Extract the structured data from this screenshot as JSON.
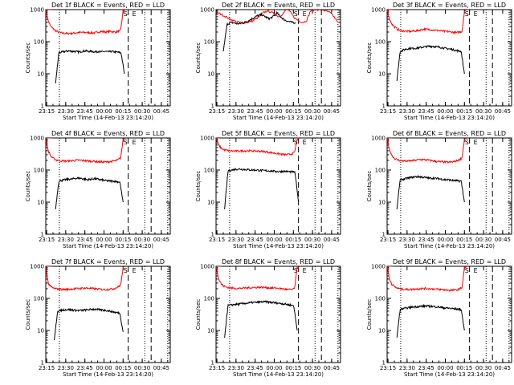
{
  "chart_data": [
    {
      "type": "line",
      "title": "Det 1f BLACK = Events, RED = LLD",
      "xlabel": "Start Time (14-Feb-13 23:14:20)",
      "ylabel": "Counts/sec",
      "y_scale": "log",
      "ylim": [
        1,
        1000
      ],
      "y_ticks": [
        "1",
        "10",
        "100",
        "1000"
      ],
      "x_ticks": [
        "23:15",
        "23:30",
        "23:45",
        "00:00",
        "00:15",
        "00:30",
        "00:45"
      ],
      "markers": [
        "S",
        "E"
      ],
      "series": [
        {
          "name": "RED = LLD",
          "color": "#ff0000",
          "start": "23:14:20",
          "end": "00:17",
          "flat_start": "23:19",
          "values": [
            1000,
            450,
            300,
            250,
            220,
            200,
            190,
            185,
            180,
            180,
            182,
            185,
            190,
            192,
            195,
            195,
            193,
            192,
            190,
            188,
            190,
            200,
            210,
            205,
            200,
            205,
            210,
            205,
            200,
            210,
            230,
            900,
            1000
          ]
        },
        {
          "name": "BLACK = Events",
          "color": "#000000",
          "start": "23:22",
          "end": "00:16",
          "values": [
            5,
            45,
            48,
            50,
            52,
            50,
            50,
            48,
            50,
            52,
            50,
            50,
            48,
            50,
            48,
            50,
            48,
            50,
            48,
            47,
            45,
            10
          ]
        }
      ]
    },
    {
      "type": "line",
      "title": "Det 2f BLACK = Events, RED = LLD",
      "xlabel": "Start Time (14-Feb-13 23:14:20)",
      "ylabel": "Counts/sec",
      "y_scale": "log",
      "ylim": [
        1,
        1000
      ],
      "y_ticks": [
        "1",
        "10",
        "100",
        "1000"
      ],
      "x_ticks": [
        "23:15",
        "23:30",
        "23:45",
        "00:00",
        "00:15",
        "00:30",
        "00:45"
      ],
      "markers": [
        "S",
        "E"
      ],
      "series": [
        {
          "name": "RED = LLD",
          "color": "#ff0000",
          "start": "23:14:20",
          "end": "00:50",
          "values": [
            850,
            750,
            650,
            550,
            480,
            430,
            400,
            390,
            400,
            430,
            500,
            600,
            800,
            900,
            850,
            700,
            600,
            750,
            1050,
            800,
            550,
            450,
            400,
            450,
            900,
            1000,
            1000,
            1000,
            900,
            800,
            600,
            400
          ]
        },
        {
          "name": "BLACK = Events",
          "color": "#000000",
          "start": "23:20",
          "end": "00:17",
          "values": [
            50,
            350,
            400,
            380,
            360,
            380,
            420,
            480,
            560,
            650,
            700,
            600,
            520,
            600,
            800,
            600,
            480,
            430,
            400,
            380
          ]
        }
      ]
    },
    {
      "type": "line",
      "title": "Det 3f BLACK = Events, RED = LLD",
      "xlabel": "Start Time (14-Feb-13 23:14:20)",
      "ylabel": "Counts/sec",
      "y_scale": "log",
      "ylim": [
        1,
        1000
      ],
      "y_ticks": [
        "1",
        "10",
        "100",
        "1000"
      ],
      "x_ticks": [
        "23:15",
        "23:30",
        "23:45",
        "00:00",
        "00:15",
        "00:30",
        "00:45"
      ],
      "markers": [
        "S",
        "E"
      ],
      "series": [
        {
          "name": "RED = LLD",
          "color": "#ff0000",
          "start": "23:14:20",
          "end": "00:17",
          "flat_start": "23:19",
          "values": [
            1000,
            500,
            350,
            290,
            250,
            230,
            220,
            215,
            210,
            210,
            212,
            215,
            220,
            230,
            240,
            245,
            242,
            240,
            235,
            230,
            225,
            220,
            215,
            210,
            208,
            205,
            200,
            195,
            190,
            200,
            210,
            900,
            1000
          ]
        },
        {
          "name": "BLACK = Events",
          "color": "#000000",
          "start": "23:22",
          "end": "00:15",
          "values": [
            6,
            50,
            55,
            60,
            62,
            62,
            63,
            65,
            68,
            70,
            72,
            72,
            70,
            68,
            66,
            62,
            60,
            58,
            55,
            52,
            50,
            10
          ]
        }
      ]
    },
    {
      "type": "line",
      "title": "Det 4f BLACK = Events, RED = LLD",
      "xlabel": "Start Time (14-Feb-13 23:14:20)",
      "ylabel": "Counts/sec",
      "y_scale": "log",
      "ylim": [
        1,
        1000
      ],
      "y_ticks": [
        "1",
        "10",
        "100",
        "1000"
      ],
      "x_ticks": [
        "23:15",
        "23:30",
        "23:45",
        "00:00",
        "00:15",
        "00:30",
        "00:45"
      ],
      "markers": [
        "S",
        "E"
      ],
      "series": [
        {
          "name": "RED = LLD",
          "color": "#ff0000",
          "start": "23:14:20",
          "end": "00:17",
          "flat_start": "23:19",
          "values": [
            1000,
            400,
            270,
            230,
            210,
            200,
            195,
            192,
            190,
            192,
            195,
            198,
            200,
            202,
            200,
            198,
            195,
            192,
            190,
            188,
            185,
            182,
            180,
            178,
            178,
            180,
            185,
            190,
            195,
            210,
            240,
            900,
            1000
          ]
        },
        {
          "name": "BLACK = Events",
          "color": "#000000",
          "start": "23:22",
          "end": "00:15",
          "values": [
            6,
            45,
            48,
            50,
            52,
            52,
            55,
            56,
            55,
            52,
            50,
            52,
            54,
            52,
            50,
            48,
            46,
            46,
            45,
            44,
            42,
            10
          ]
        }
      ]
    },
    {
      "type": "line",
      "title": "Det 5f BLACK = Events, RED = LLD",
      "xlabel": "Start Time (14-Feb-13 23:14:20)",
      "ylabel": "Counts/sec",
      "y_scale": "log",
      "ylim": [
        1,
        1000
      ],
      "y_ticks": [
        "1",
        "10",
        "100",
        "1000"
      ],
      "x_ticks": [
        "23:15",
        "23:30",
        "23:45",
        "00:00",
        "00:15",
        "00:30",
        "00:45"
      ],
      "markers": [
        "S",
        "E"
      ],
      "series": [
        {
          "name": "RED = LLD",
          "color": "#ff0000",
          "start": "23:14:20",
          "end": "00:20",
          "flat_start": "23:17",
          "values": [
            1000,
            600,
            480,
            430,
            410,
            400,
            395,
            390,
            390,
            392,
            395,
            398,
            400,
            398,
            395,
            392,
            390,
            385,
            380,
            370,
            360,
            350,
            340,
            330,
            320,
            310,
            305,
            300,
            305,
            320,
            350,
            900,
            1000
          ]
        },
        {
          "name": "BLACK = Events",
          "color": "#000000",
          "start": "23:21",
          "end": "00:19",
          "values": [
            6,
            95,
            100,
            105,
            108,
            106,
            104,
            102,
            100,
            100,
            98,
            96,
            95,
            94,
            92,
            90,
            90,
            92,
            90,
            88,
            86,
            10
          ]
        }
      ]
    },
    {
      "type": "line",
      "title": "Det 6f BLACK = Events, RED = LLD",
      "xlabel": "Start Time (14-Feb-13 23:14:20)",
      "ylabel": "Counts/sec",
      "y_scale": "log",
      "ylim": [
        1,
        1000
      ],
      "y_ticks": [
        "1",
        "10",
        "100",
        "1000"
      ],
      "x_ticks": [
        "23:15",
        "23:30",
        "23:45",
        "00:00",
        "00:15",
        "00:30",
        "00:45"
      ],
      "markers": [
        "S",
        "E"
      ],
      "series": [
        {
          "name": "RED = LLD",
          "color": "#ff0000",
          "start": "23:14:20",
          "end": "00:17",
          "flat_start": "23:19",
          "values": [
            1000,
            420,
            280,
            230,
            210,
            200,
            195,
            190,
            190,
            192,
            195,
            200,
            205,
            210,
            212,
            210,
            205,
            200,
            195,
            190,
            185,
            182,
            180,
            178,
            175,
            175,
            178,
            185,
            195,
            210,
            240,
            900,
            1000
          ]
        },
        {
          "name": "BLACK = Events",
          "color": "#000000",
          "start": "23:22",
          "end": "00:15",
          "values": [
            6,
            50,
            52,
            55,
            58,
            60,
            62,
            62,
            60,
            58,
            56,
            56,
            55,
            54,
            52,
            50,
            50,
            48,
            47,
            46,
            45,
            10
          ]
        }
      ]
    },
    {
      "type": "line",
      "title": "Det 7f BLACK = Events, RED = LLD",
      "xlabel": "Start Time (14-Feb-13 23:14:20)",
      "ylabel": "Counts/sec",
      "y_scale": "log",
      "ylim": [
        1,
        1000
      ],
      "y_ticks": [
        "1",
        "10",
        "100",
        "1000"
      ],
      "x_ticks": [
        "23:15",
        "23:30",
        "23:45",
        "00:00",
        "00:15",
        "00:30",
        "00:45"
      ],
      "markers": [
        "S",
        "E"
      ],
      "series": [
        {
          "name": "RED = LLD",
          "color": "#ff0000",
          "start": "23:14:20",
          "end": "00:17",
          "flat_start": "23:19",
          "values": [
            1000,
            300,
            230,
            210,
            200,
            195,
            192,
            190,
            190,
            192,
            195,
            198,
            200,
            202,
            205,
            208,
            210,
            208,
            205,
            200,
            198,
            195,
            192,
            190,
            188,
            190,
            195,
            200,
            210,
            230,
            260,
            900,
            1000
          ]
        },
        {
          "name": "BLACK = Events",
          "color": "#000000",
          "start": "23:21",
          "end": "00:15",
          "values": [
            5,
            40,
            42,
            44,
            45,
            44,
            43,
            42,
            42,
            43,
            44,
            45,
            46,
            45,
            44,
            43,
            42,
            40,
            38,
            36,
            35,
            9
          ]
        }
      ]
    },
    {
      "type": "line",
      "title": "Det 8f BLACK = Events, RED = LLD",
      "xlabel": "Start Time (14-Feb-13 23:14:20)",
      "ylabel": "Counts/sec",
      "y_scale": "log",
      "ylim": [
        1,
        1000
      ],
      "y_ticks": [
        "1",
        "10",
        "100",
        "1000"
      ],
      "x_ticks": [
        "23:15",
        "23:30",
        "23:45",
        "00:00",
        "00:15",
        "00:30",
        "00:45"
      ],
      "markers": [
        "S",
        "E"
      ],
      "series": [
        {
          "name": "RED = LLD",
          "color": "#ff0000",
          "start": "23:14:20",
          "end": "00:20",
          "flat_start": "23:18",
          "values": [
            1000,
            400,
            280,
            240,
            225,
            215,
            210,
            208,
            205,
            205,
            208,
            210,
            212,
            215,
            218,
            220,
            222,
            222,
            220,
            218,
            215,
            212,
            210,
            208,
            205,
            200,
            195,
            190,
            188,
            190,
            200,
            900,
            1000
          ]
        },
        {
          "name": "BLACK = Events",
          "color": "#000000",
          "start": "23:21",
          "end": "00:18",
          "values": [
            6,
            60,
            62,
            65,
            66,
            68,
            70,
            72,
            74,
            75,
            76,
            78,
            78,
            76,
            74,
            72,
            70,
            68,
            65,
            62,
            60,
            10
          ]
        }
      ]
    },
    {
      "type": "line",
      "title": "Det 9f BLACK = Events, RED = LLD",
      "xlabel": "Start Time (14-Feb-13 23:14:20)",
      "ylabel": "Counts/sec",
      "y_scale": "log",
      "ylim": [
        1,
        1000
      ],
      "y_ticks": [
        "1",
        "10",
        "100",
        "1000"
      ],
      "x_ticks": [
        "23:15",
        "23:30",
        "23:45",
        "00:00",
        "00:15",
        "00:30",
        "00:45"
      ],
      "markers": [
        "S",
        "E"
      ],
      "series": [
        {
          "name": "RED = LLD",
          "color": "#ff0000",
          "start": "23:14:20",
          "end": "00:17",
          "flat_start": "23:19",
          "values": [
            1000,
            400,
            270,
            230,
            210,
            200,
            195,
            192,
            190,
            190,
            192,
            195,
            198,
            200,
            202,
            203,
            202,
            200,
            198,
            195,
            192,
            190,
            188,
            185,
            182,
            180,
            180,
            182,
            185,
            195,
            220,
            900,
            1000
          ]
        },
        {
          "name": "BLACK = Events",
          "color": "#000000",
          "start": "23:22",
          "end": "00:15",
          "values": [
            6,
            45,
            48,
            50,
            52,
            54,
            55,
            56,
            57,
            58,
            57,
            56,
            55,
            54,
            52,
            50,
            50,
            48,
            47,
            46,
            45,
            10
          ]
        }
      ]
    }
  ]
}
